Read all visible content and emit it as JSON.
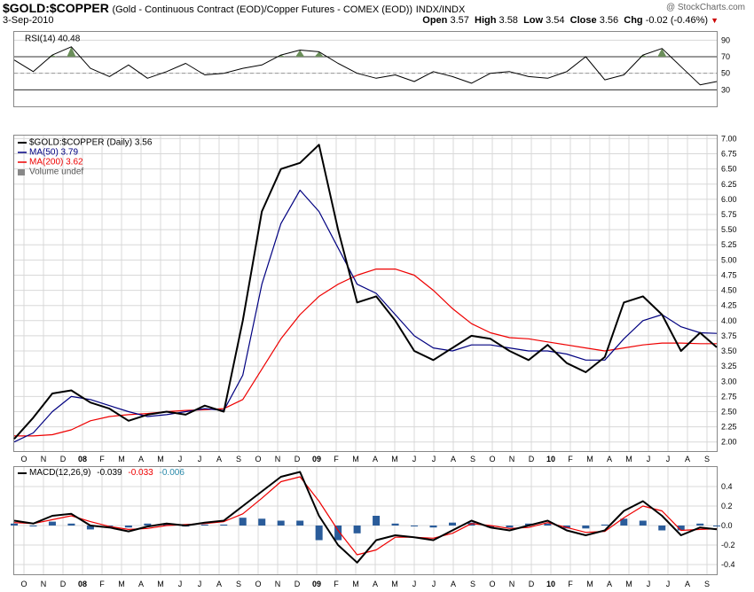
{
  "header": {
    "symbol": "$GOLD:$COPPER",
    "description": "(Gold - Continuous Contract (EOD)/Copper Futures - COMEX (EOD))",
    "exchange": "INDX/INDX",
    "date": "3-Sep-2010",
    "logo": "@ StockCharts.com",
    "open_label": "Open",
    "open": "3.57",
    "high_label": "High",
    "high": "3.58",
    "low_label": "Low",
    "low": "3.54",
    "close_label": "Close",
    "close": "3.56",
    "chg_label": "Chg",
    "chg": "-0.02 (-0.46%)",
    "chg_arrow": "▼"
  },
  "colors": {
    "price": "#000000",
    "ma50": "#000080",
    "ma200": "#ee0000",
    "macd_hist": "#2a5c9a",
    "rsi_fill": "#6b8e5a",
    "grid": "#d8d8d8",
    "border": "#888888"
  },
  "legends": {
    "rsi": "RSI(14) 40.48",
    "price": "$GOLD:$COPPER (Daily) 3.56",
    "ma50": "MA(50) 3.79",
    "ma200": "MA(200) 3.62",
    "volume": "Volume undef",
    "macd_label": "MACD(12,26,9)",
    "macd_value": "-0.039",
    "macd_signal": "-0.033",
    "macd_hist": "-0.006"
  },
  "chart_data": [
    {
      "type": "line",
      "title": "RSI(14) 40.48",
      "ylim": [
        10,
        100
      ],
      "yticks": [
        "30",
        "50",
        "70",
        "90"
      ],
      "reference_lines": [
        30,
        50,
        70
      ],
      "grid": true,
      "x": [
        2007.72,
        2007.8,
        2007.88,
        2007.96,
        2008.04,
        2008.12,
        2008.2,
        2008.28,
        2008.36,
        2008.44,
        2008.52,
        2008.6,
        2008.68,
        2008.76,
        2008.84,
        2008.92,
        2009.0,
        2009.08,
        2009.16,
        2009.24,
        2009.32,
        2009.4,
        2009.48,
        2009.56,
        2009.64,
        2009.72,
        2009.8,
        2009.88,
        2009.96,
        2010.04,
        2010.12,
        2010.2,
        2010.28,
        2010.36,
        2010.44,
        2010.52,
        2010.6,
        2010.67
      ],
      "values": [
        66,
        52,
        72,
        82,
        56,
        46,
        60,
        44,
        52,
        62,
        48,
        50,
        56,
        60,
        72,
        78,
        76,
        62,
        50,
        44,
        48,
        40,
        52,
        46,
        38,
        50,
        52,
        46,
        44,
        52,
        70,
        42,
        48,
        72,
        80,
        58,
        36,
        40
      ]
    },
    {
      "type": "line",
      "title": "$GOLD:$COPPER (Daily) 3.56",
      "ylim": [
        1.85,
        7.05
      ],
      "yticks": [
        "2.00",
        "2.25",
        "2.50",
        "2.75",
        "3.00",
        "3.25",
        "3.50",
        "3.75",
        "4.00",
        "4.25",
        "4.50",
        "4.75",
        "5.00",
        "5.25",
        "5.50",
        "5.75",
        "6.00",
        "6.25",
        "6.50",
        "6.75",
        "7.00"
      ],
      "xticks": [
        "O",
        "N",
        "D",
        "08",
        "F",
        "M",
        "A",
        "M",
        "J",
        "J",
        "A",
        "S",
        "O",
        "N",
        "D",
        "09",
        "F",
        "M",
        "A",
        "M",
        "J",
        "J",
        "A",
        "S",
        "O",
        "N",
        "D",
        "10",
        "F",
        "M",
        "A",
        "M",
        "J",
        "J",
        "A",
        "S"
      ],
      "grid": true,
      "x": [
        2007.72,
        2007.8,
        2007.88,
        2007.96,
        2008.04,
        2008.12,
        2008.2,
        2008.28,
        2008.36,
        2008.44,
        2008.52,
        2008.6,
        2008.68,
        2008.76,
        2008.84,
        2008.92,
        2009.0,
        2009.08,
        2009.16,
        2009.24,
        2009.32,
        2009.4,
        2009.48,
        2009.56,
        2009.64,
        2009.72,
        2009.8,
        2009.88,
        2009.96,
        2010.04,
        2010.12,
        2010.2,
        2010.28,
        2010.36,
        2010.44,
        2010.52,
        2010.6,
        2010.67
      ],
      "series": [
        {
          "name": "$GOLD:$COPPER (Daily) 3.56",
          "values": [
            2.05,
            2.4,
            2.8,
            2.85,
            2.65,
            2.55,
            2.35,
            2.45,
            2.5,
            2.45,
            2.6,
            2.5,
            4.0,
            5.8,
            6.5,
            6.6,
            6.9,
            5.5,
            4.3,
            4.4,
            4.0,
            3.5,
            3.35,
            3.55,
            3.75,
            3.7,
            3.5,
            3.35,
            3.6,
            3.3,
            3.15,
            3.4,
            4.3,
            4.4,
            4.1,
            3.5,
            3.8,
            3.56
          ]
        },
        {
          "name": "MA(50) 3.79",
          "values": [
            2.0,
            2.15,
            2.5,
            2.75,
            2.7,
            2.6,
            2.5,
            2.42,
            2.45,
            2.5,
            2.55,
            2.52,
            3.1,
            4.6,
            5.6,
            6.15,
            5.8,
            5.2,
            4.6,
            4.45,
            4.1,
            3.75,
            3.55,
            3.5,
            3.6,
            3.6,
            3.55,
            3.5,
            3.5,
            3.45,
            3.35,
            3.35,
            3.7,
            4.0,
            4.1,
            3.9,
            3.8,
            3.79
          ]
        },
        {
          "name": "MA(200) 3.62",
          "values": [
            2.1,
            2.1,
            2.12,
            2.2,
            2.35,
            2.42,
            2.45,
            2.47,
            2.5,
            2.52,
            2.53,
            2.55,
            2.7,
            3.2,
            3.7,
            4.1,
            4.4,
            4.6,
            4.75,
            4.85,
            4.85,
            4.75,
            4.5,
            4.2,
            3.95,
            3.8,
            3.72,
            3.7,
            3.65,
            3.6,
            3.55,
            3.5,
            3.55,
            3.6,
            3.63,
            3.63,
            3.62,
            3.62
          ]
        }
      ]
    },
    {
      "type": "line",
      "title": "MACD(12,26,9)",
      "ylim": [
        -0.5,
        0.6
      ],
      "yticks": [
        "-0.4",
        "-0.2",
        "0.0",
        "0.2",
        "0.4"
      ],
      "grid": true,
      "x": [
        2007.72,
        2007.8,
        2007.88,
        2007.96,
        2008.04,
        2008.12,
        2008.2,
        2008.28,
        2008.36,
        2008.44,
        2008.52,
        2008.6,
        2008.68,
        2008.76,
        2008.84,
        2008.92,
        2009.0,
        2009.08,
        2009.16,
        2009.24,
        2009.32,
        2009.4,
        2009.48,
        2009.56,
        2009.64,
        2009.72,
        2009.8,
        2009.88,
        2009.96,
        2010.04,
        2010.12,
        2010.2,
        2010.28,
        2010.36,
        2010.44,
        2010.52,
        2010.6,
        2010.67
      ],
      "series": [
        {
          "name": "MACD(12,26,9) -0.039",
          "values": [
            0.05,
            0.02,
            0.1,
            0.12,
            0.0,
            -0.02,
            -0.06,
            -0.01,
            0.02,
            0.0,
            0.03,
            0.05,
            0.2,
            0.35,
            0.5,
            0.55,
            0.1,
            -0.2,
            -0.38,
            -0.15,
            -0.1,
            -0.12,
            -0.15,
            -0.05,
            0.05,
            -0.02,
            -0.05,
            0.0,
            0.05,
            -0.05,
            -0.1,
            -0.05,
            0.15,
            0.25,
            0.1,
            -0.1,
            -0.02,
            -0.039
          ]
        },
        {
          "name": "-0.033",
          "values": [
            0.03,
            0.02,
            0.06,
            0.1,
            0.04,
            -0.01,
            -0.04,
            -0.03,
            0.0,
            0.01,
            0.02,
            0.04,
            0.12,
            0.28,
            0.45,
            0.5,
            0.25,
            -0.05,
            -0.3,
            -0.25,
            -0.12,
            -0.12,
            -0.13,
            -0.08,
            0.02,
            0.0,
            -0.03,
            -0.02,
            0.03,
            -0.02,
            -0.07,
            -0.06,
            0.08,
            0.2,
            0.15,
            -0.05,
            -0.04,
            -0.033
          ]
        },
        {
          "name": "-0.006",
          "values": [
            0.02,
            0.0,
            0.04,
            0.02,
            -0.04,
            -0.01,
            -0.02,
            0.02,
            0.02,
            -0.01,
            0.01,
            0.01,
            0.08,
            0.07,
            0.05,
            0.05,
            -0.15,
            -0.15,
            -0.08,
            0.1,
            0.02,
            0.0,
            -0.02,
            0.03,
            0.03,
            -0.02,
            -0.02,
            0.02,
            0.02,
            -0.03,
            -0.03,
            0.01,
            0.07,
            0.05,
            -0.05,
            -0.05,
            0.02,
            -0.006
          ]
        }
      ]
    }
  ]
}
